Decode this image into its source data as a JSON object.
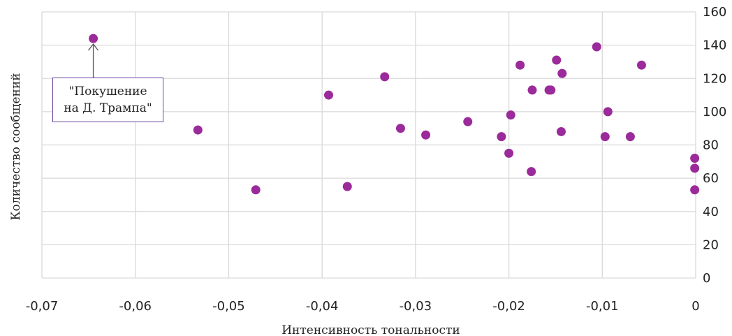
{
  "chart_data": {
    "type": "scatter",
    "xlabel": "Интенсивность тональности",
    "ylabel": "Количество сообщений",
    "xlim": [
      -0.07,
      0
    ],
    "ylim": [
      0,
      160
    ],
    "x_ticks": [
      "-0,07",
      "-0,06",
      "-0,05",
      "-0,04",
      "-0,03",
      "-0,02",
      "-0,01",
      "0"
    ],
    "y_ticks": [
      "0",
      "20",
      "40",
      "60",
      "80",
      "100",
      "120",
      "140",
      "160"
    ],
    "grid": true,
    "y_axis_side": "right",
    "marker_color": "#9b2a9b",
    "points": [
      {
        "x": -0.0645,
        "y": 144
      },
      {
        "x": -0.0533,
        "y": 89
      },
      {
        "x": -0.0471,
        "y": 53
      },
      {
        "x": -0.0393,
        "y": 110
      },
      {
        "x": -0.0373,
        "y": 55
      },
      {
        "x": -0.0333,
        "y": 121
      },
      {
        "x": -0.0316,
        "y": 90
      },
      {
        "x": -0.0289,
        "y": 86
      },
      {
        "x": -0.0244,
        "y": 94
      },
      {
        "x": -0.0208,
        "y": 85
      },
      {
        "x": -0.02,
        "y": 75
      },
      {
        "x": -0.0198,
        "y": 98
      },
      {
        "x": -0.0188,
        "y": 128
      },
      {
        "x": -0.0176,
        "y": 64
      },
      {
        "x": -0.0175,
        "y": 113
      },
      {
        "x": -0.0157,
        "y": 113
      },
      {
        "x": -0.0155,
        "y": 113
      },
      {
        "x": -0.0149,
        "y": 131
      },
      {
        "x": -0.0144,
        "y": 88
      },
      {
        "x": -0.0143,
        "y": 123
      },
      {
        "x": -0.0106,
        "y": 139
      },
      {
        "x": -0.0097,
        "y": 85
      },
      {
        "x": -0.0094,
        "y": 100
      },
      {
        "x": -0.007,
        "y": 85
      },
      {
        "x": -0.0058,
        "y": 128
      },
      {
        "x": -0.0001,
        "y": 72
      },
      {
        "x": -0.0001,
        "y": 66
      },
      {
        "x": -0.0001,
        "y": 53
      }
    ],
    "annotations": [
      {
        "text": "\"Покушение\nна Д. Трампа\"",
        "x": -0.0645,
        "y": 144
      }
    ]
  }
}
